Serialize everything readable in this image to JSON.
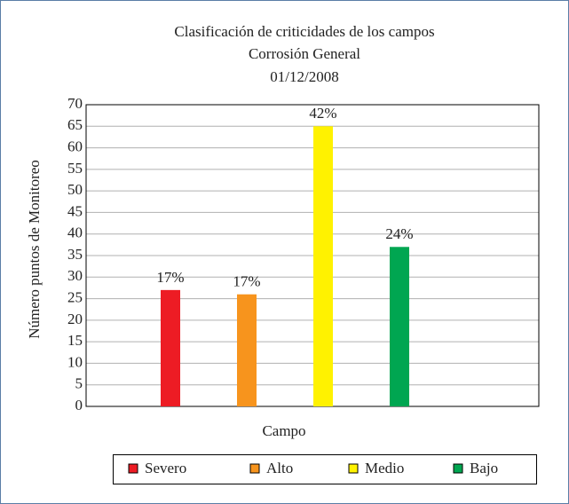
{
  "chart_data": {
    "type": "bar",
    "title": "Clasificación de criticidades de los campos",
    "subtitle": "Corrosión General",
    "date": "01/12/2008",
    "x_label": "Campo",
    "y_label": "Número puntos de Monitoreo",
    "series": [
      {
        "name": "Severo",
        "color": "#ed1c24",
        "values": [
          27
        ],
        "data_labels": [
          "17%"
        ]
      },
      {
        "name": "Alto",
        "color": "#f7941d",
        "values": [
          26
        ],
        "data_labels": [
          "17%"
        ]
      },
      {
        "name": "Medio",
        "color": "#fff200",
        "values": [
          65
        ],
        "data_labels": [
          "42%"
        ]
      },
      {
        "name": "Bajo",
        "color": "#00a651",
        "values": [
          37
        ],
        "data_labels": [
          "24%"
        ]
      }
    ],
    "ylim": [
      0,
      70
    ],
    "yticks": [
      0,
      5,
      10,
      15,
      20,
      25,
      30,
      35,
      40,
      45,
      50,
      55,
      60,
      65,
      70
    ],
    "grid": true,
    "legend": "bottom"
  }
}
